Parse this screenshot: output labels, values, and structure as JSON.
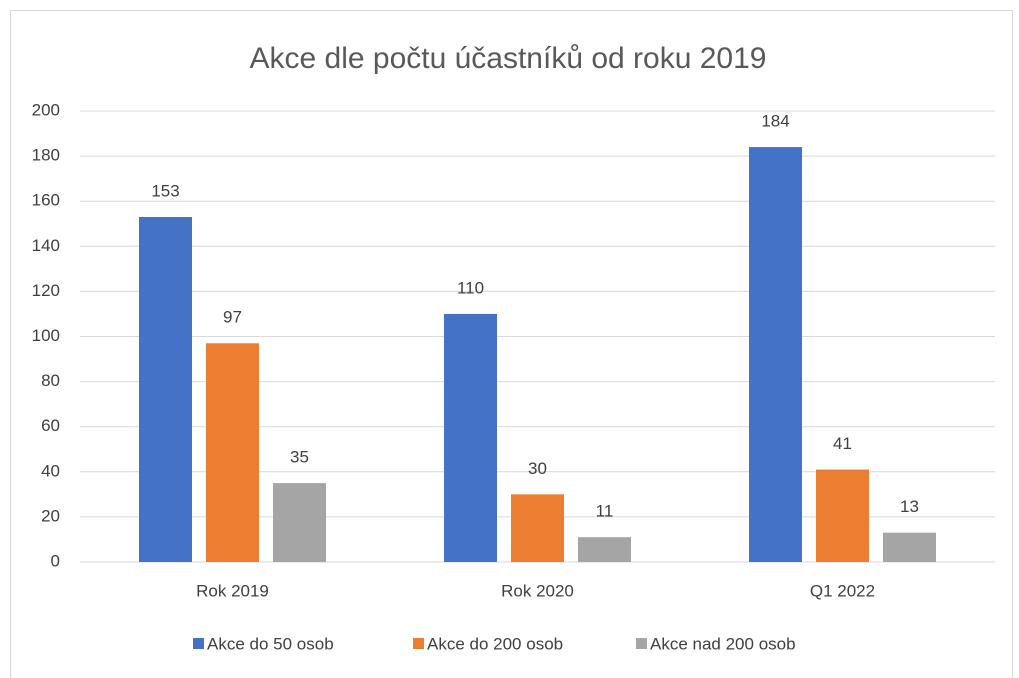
{
  "chart_data": {
    "type": "bar",
    "title": "Akce dle počtu účastníků od roku 2019",
    "categories": [
      "Rok 2019",
      "Rok 2020",
      "Q1 2022"
    ],
    "series": [
      {
        "name": "Akce do 50 osob",
        "color": "#4472c4",
        "values": [
          153,
          110,
          184
        ]
      },
      {
        "name": "Akce do 200 osob",
        "color": "#ed7d31",
        "values": [
          97,
          30,
          41
        ]
      },
      {
        "name": "Akce nad 200 osob",
        "color": "#a5a5a5",
        "values": [
          35,
          11,
          13
        ]
      }
    ],
    "ylim": [
      0,
      200
    ],
    "yticks": [
      0,
      20,
      40,
      60,
      80,
      100,
      120,
      140,
      160,
      180,
      200
    ],
    "grid": true,
    "legend": "bottom"
  }
}
